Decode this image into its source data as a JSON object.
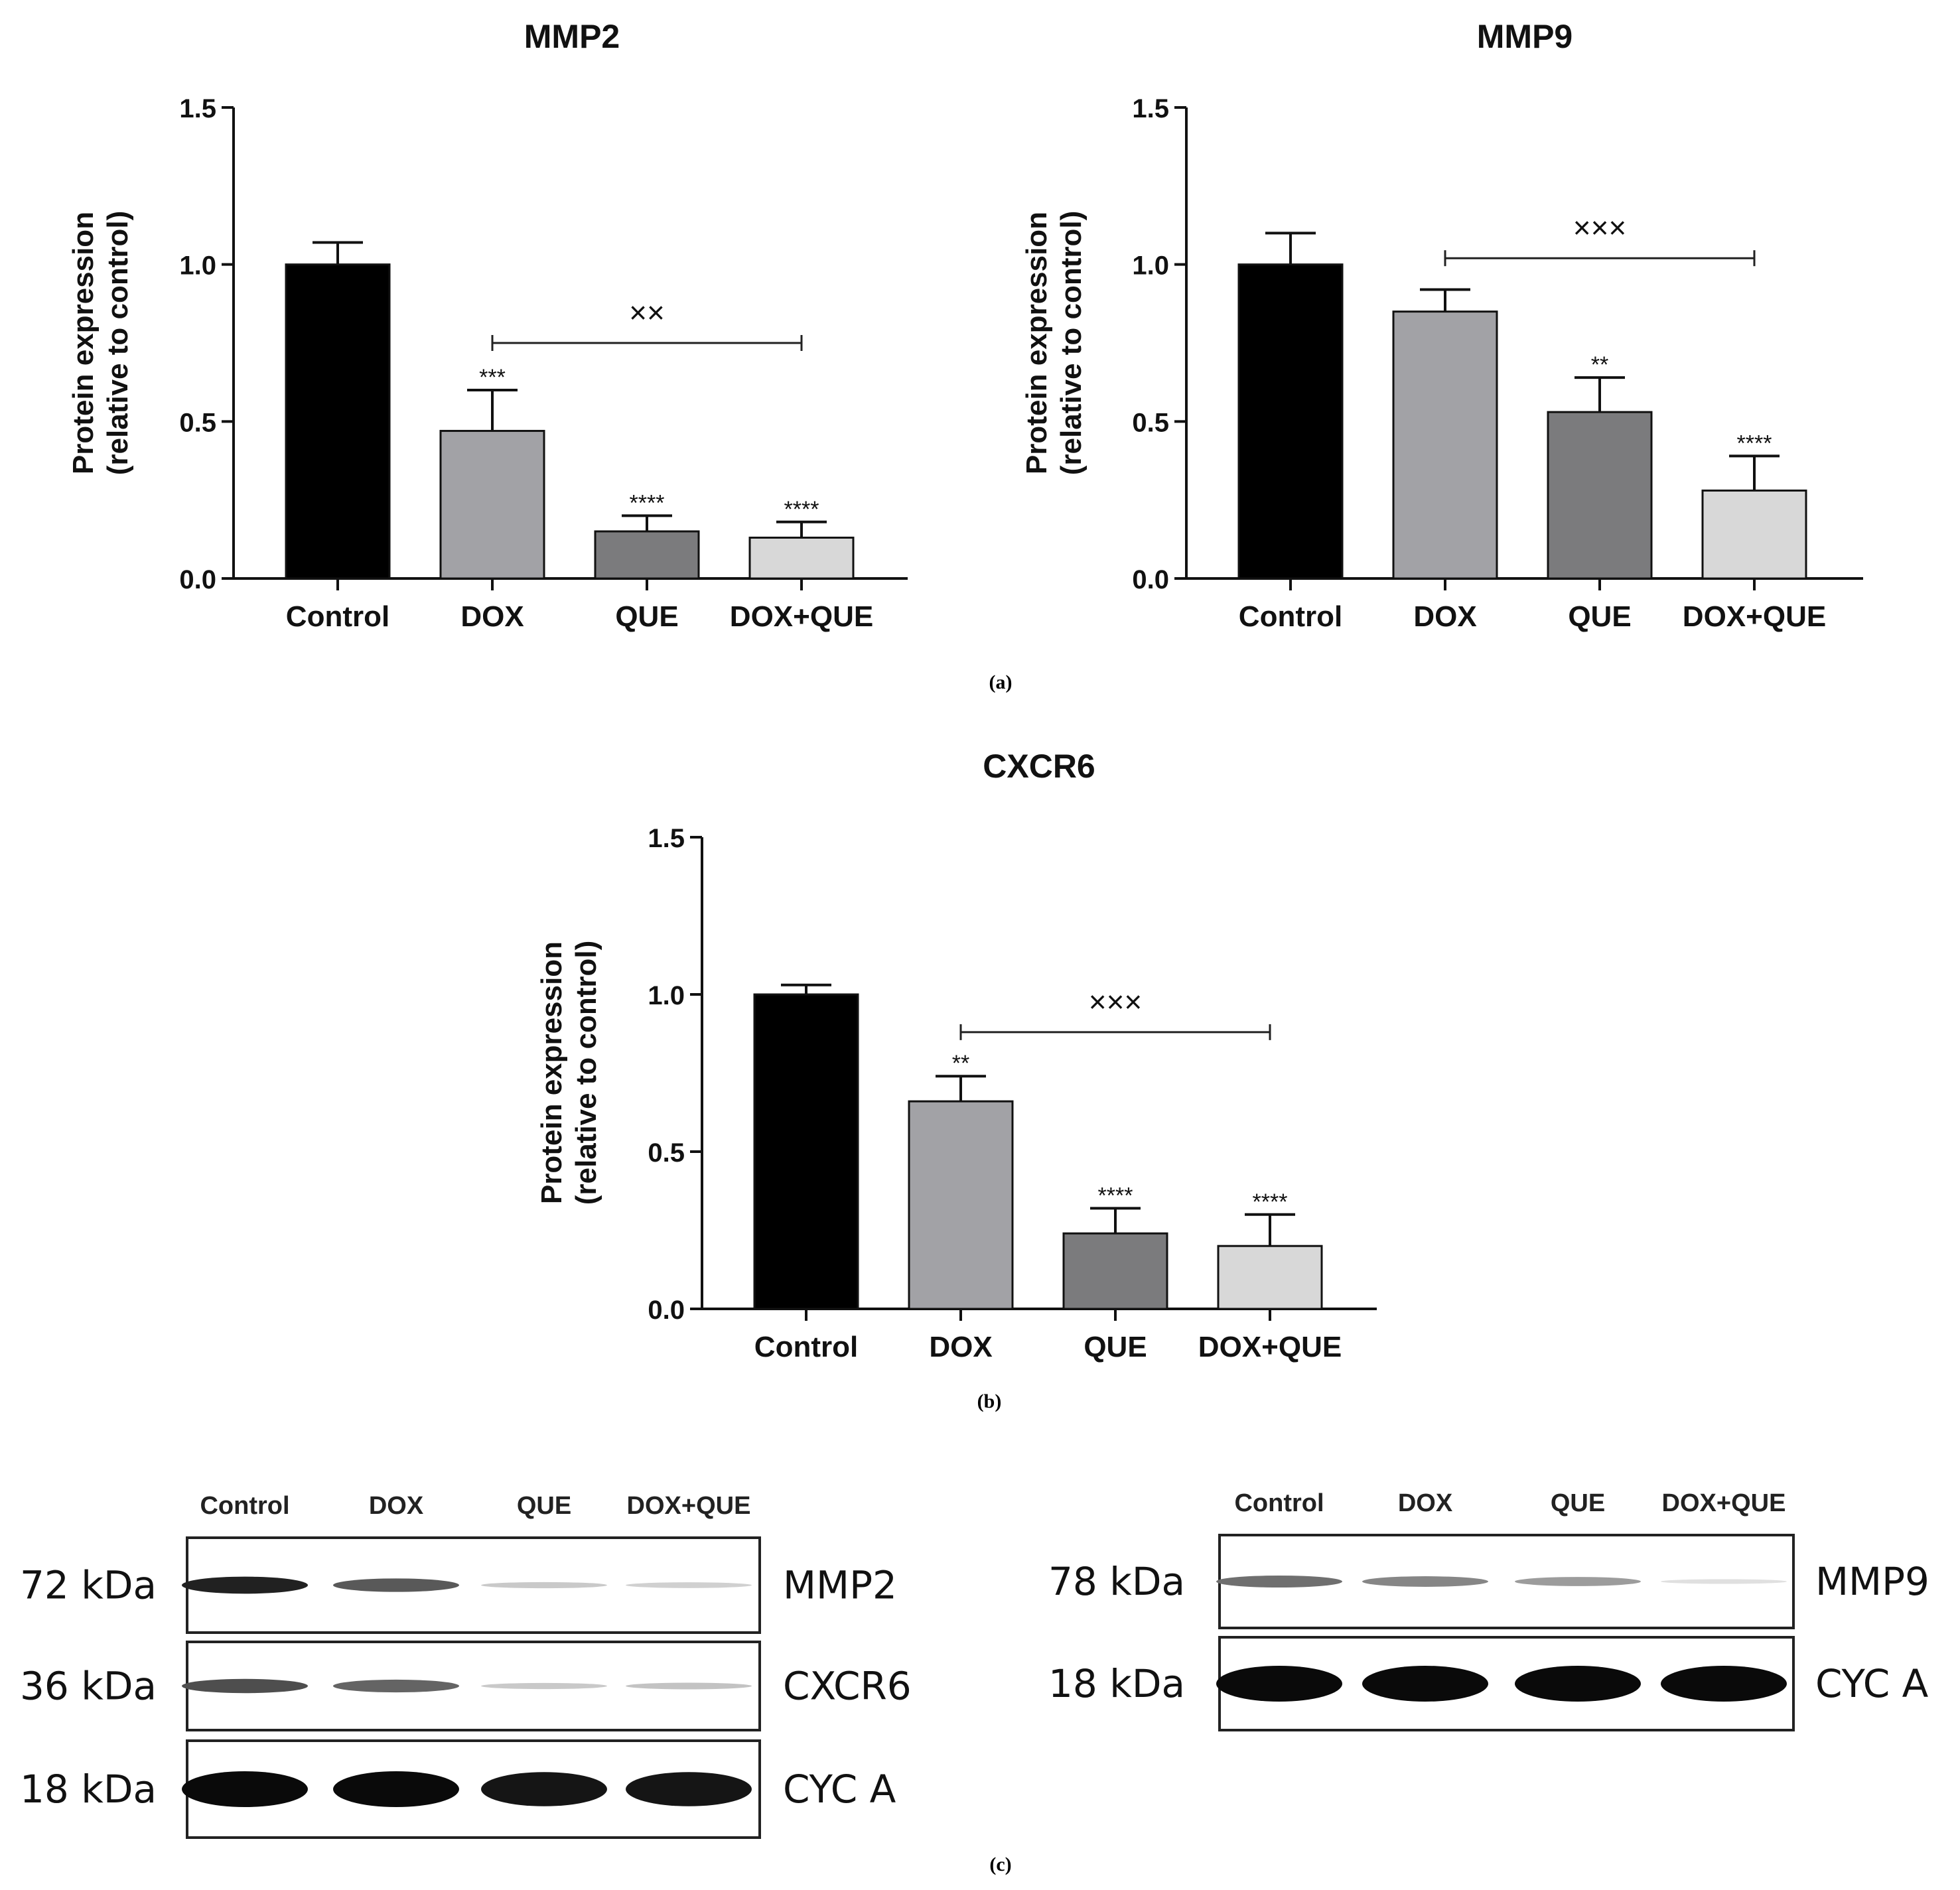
{
  "chart_data": [
    {
      "type": "bar",
      "title": "MMP2",
      "ylabel_line1": "Protein expression",
      "ylabel_line2": "(relative to control)",
      "categories": [
        "Control",
        "DOX",
        "QUE",
        "DOX+QUE"
      ],
      "values": [
        1.0,
        0.47,
        0.15,
        0.13
      ],
      "errors": [
        0.07,
        0.13,
        0.05,
        0.05
      ],
      "significance": [
        "",
        "***",
        "****",
        "****"
      ],
      "bracket": {
        "from": "DOX",
        "to": "DOX+QUE",
        "label": "××"
      },
      "ylim": [
        0,
        1.5
      ],
      "yticks": [
        "0.0",
        "0.5",
        "1.0",
        "1.5"
      ],
      "colors": [
        "#000000",
        "#a2a2a6",
        "#7b7b7d",
        "#d8d8d8"
      ],
      "grid": false
    },
    {
      "type": "bar",
      "title": "MMP9",
      "ylabel_line1": "Protein expression",
      "ylabel_line2": "(relative to control)",
      "categories": [
        "Control",
        "DOX",
        "QUE",
        "DOX+QUE"
      ],
      "values": [
        1.0,
        0.85,
        0.53,
        0.28
      ],
      "errors": [
        0.1,
        0.07,
        0.11,
        0.11
      ],
      "significance": [
        "",
        "",
        "**",
        "****"
      ],
      "bracket": {
        "from": "DOX",
        "to": "DOX+QUE",
        "label": "×××"
      },
      "ylim": [
        0,
        1.5
      ],
      "yticks": [
        "0.0",
        "0.5",
        "1.0",
        "1.5"
      ],
      "colors": [
        "#000000",
        "#a2a2a6",
        "#7b7b7d",
        "#d8d8d8"
      ],
      "grid": false
    },
    {
      "type": "bar",
      "title": "CXCR6",
      "ylabel_line1": "Protein expression",
      "ylabel_line2": "(relative to control)",
      "categories": [
        "Control",
        "DOX",
        "QUE",
        "DOX+QUE"
      ],
      "values": [
        1.0,
        0.66,
        0.24,
        0.2
      ],
      "errors": [
        0.03,
        0.08,
        0.08,
        0.1
      ],
      "significance": [
        "",
        "**",
        "****",
        "****"
      ],
      "bracket": {
        "from": "DOX",
        "to": "DOX+QUE",
        "label": "×××"
      },
      "ylim": [
        0,
        1.5
      ],
      "yticks": [
        "0.0",
        "0.5",
        "1.0",
        "1.5"
      ],
      "colors": [
        "#000000",
        "#a2a2a6",
        "#7b7b7d",
        "#d8d8d8"
      ],
      "grid": false
    }
  ],
  "panel_labels": [
    "(a)",
    "(b)",
    "(c)"
  ],
  "blots": [
    {
      "lanes": [
        "Control",
        "DOX",
        "QUE",
        "DOX+QUE"
      ],
      "rows": [
        {
          "size": "72 kDa",
          "protein": "MMP2",
          "intensity": [
            0.9,
            0.65,
            0.15,
            0.12
          ]
        },
        {
          "size": "36 kDa",
          "protein": "CXCR6",
          "intensity": [
            0.7,
            0.6,
            0.15,
            0.18
          ]
        },
        {
          "size": "18 kDa",
          "protein": "CYC A",
          "intensity": [
            1.0,
            1.0,
            0.95,
            0.95
          ]
        }
      ]
    },
    {
      "lanes": [
        "Control",
        "DOX",
        "QUE",
        "DOX+QUE"
      ],
      "rows": [
        {
          "size": "78 kDa",
          "protein": "MMP9",
          "intensity": [
            0.55,
            0.45,
            0.35,
            0.05
          ]
        },
        {
          "size": "18 kDa",
          "protein": "CYC A",
          "intensity": [
            1.0,
            1.0,
            1.0,
            1.0
          ]
        }
      ]
    }
  ]
}
